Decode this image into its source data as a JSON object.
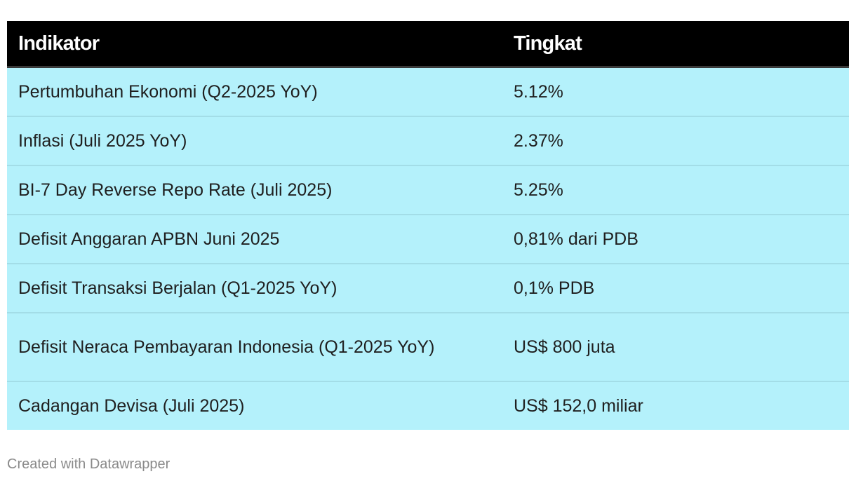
{
  "table": {
    "headers": {
      "indicator": "Indikator",
      "rate": "Tingkat"
    },
    "rows": [
      {
        "indicator": "Pertumbuhan Ekonomi (Q2-2025 YoY)",
        "rate": "5.12%"
      },
      {
        "indicator": "Inflasi (Juli 2025 YoY)",
        "rate": "2.37%"
      },
      {
        "indicator": "BI-7 Day Reverse Repo Rate (Juli 2025)",
        "rate": "5.25%"
      },
      {
        "indicator": "Defisit Anggaran APBN Juni 2025",
        "rate": "0,81% dari PDB"
      },
      {
        "indicator": "Defisit Transaksi Berjalan (Q1-2025 YoY)",
        "rate": "0,1% PDB"
      },
      {
        "indicator": "Defisit Neraca Pembayaran Indonesia (Q1-2025 YoY)",
        "rate": "US$ 800 juta"
      },
      {
        "indicator": "Cadangan Devisa (Juli 2025)",
        "rate": "US$ 152,0 miliar"
      }
    ]
  },
  "footer": {
    "credit": "Created with Datawrapper"
  },
  "colors": {
    "header_background": "#000000",
    "header_text": "#ffffff",
    "row_background": "#b4f1fb",
    "row_divider": "#a3dde7",
    "footer_text": "#8a8a8a"
  }
}
